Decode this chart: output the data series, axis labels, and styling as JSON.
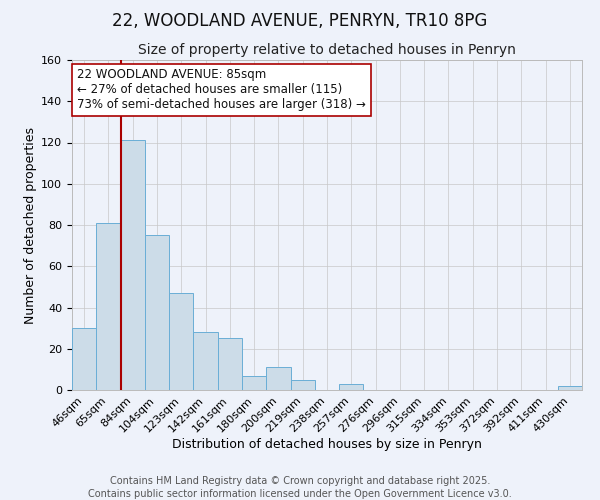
{
  "title": "22, WOODLAND AVENUE, PENRYN, TR10 8PG",
  "subtitle": "Size of property relative to detached houses in Penryn",
  "xlabel": "Distribution of detached houses by size in Penryn",
  "ylabel": "Number of detached properties",
  "categories": [
    "46sqm",
    "65sqm",
    "84sqm",
    "104sqm",
    "123sqm",
    "142sqm",
    "161sqm",
    "180sqm",
    "200sqm",
    "219sqm",
    "238sqm",
    "257sqm",
    "276sqm",
    "296sqm",
    "315sqm",
    "334sqm",
    "353sqm",
    "372sqm",
    "392sqm",
    "411sqm",
    "430sqm"
  ],
  "values": [
    30,
    81,
    121,
    75,
    47,
    28,
    25,
    7,
    11,
    5,
    0,
    3,
    0,
    0,
    0,
    0,
    0,
    0,
    0,
    0,
    2
  ],
  "bar_color": "#ccdce8",
  "bar_edge_color": "#6aaed6",
  "background_color": "#eef2fa",
  "grid_color": "#c8c8c8",
  "vline_color": "#aa0000",
  "annotation_text": "22 WOODLAND AVENUE: 85sqm\n← 27% of detached houses are smaller (115)\n73% of semi-detached houses are larger (318) →",
  "annotation_box_color": "#ffffff",
  "annotation_box_edge": "#aa0000",
  "ylim": [
    0,
    160
  ],
  "yticks": [
    0,
    20,
    40,
    60,
    80,
    100,
    120,
    140,
    160
  ],
  "footer1": "Contains HM Land Registry data © Crown copyright and database right 2025.",
  "footer2": "Contains public sector information licensed under the Open Government Licence v3.0.",
  "title_fontsize": 12,
  "subtitle_fontsize": 10,
  "axis_label_fontsize": 9,
  "tick_fontsize": 8,
  "annotation_fontsize": 8.5,
  "footer_fontsize": 7
}
